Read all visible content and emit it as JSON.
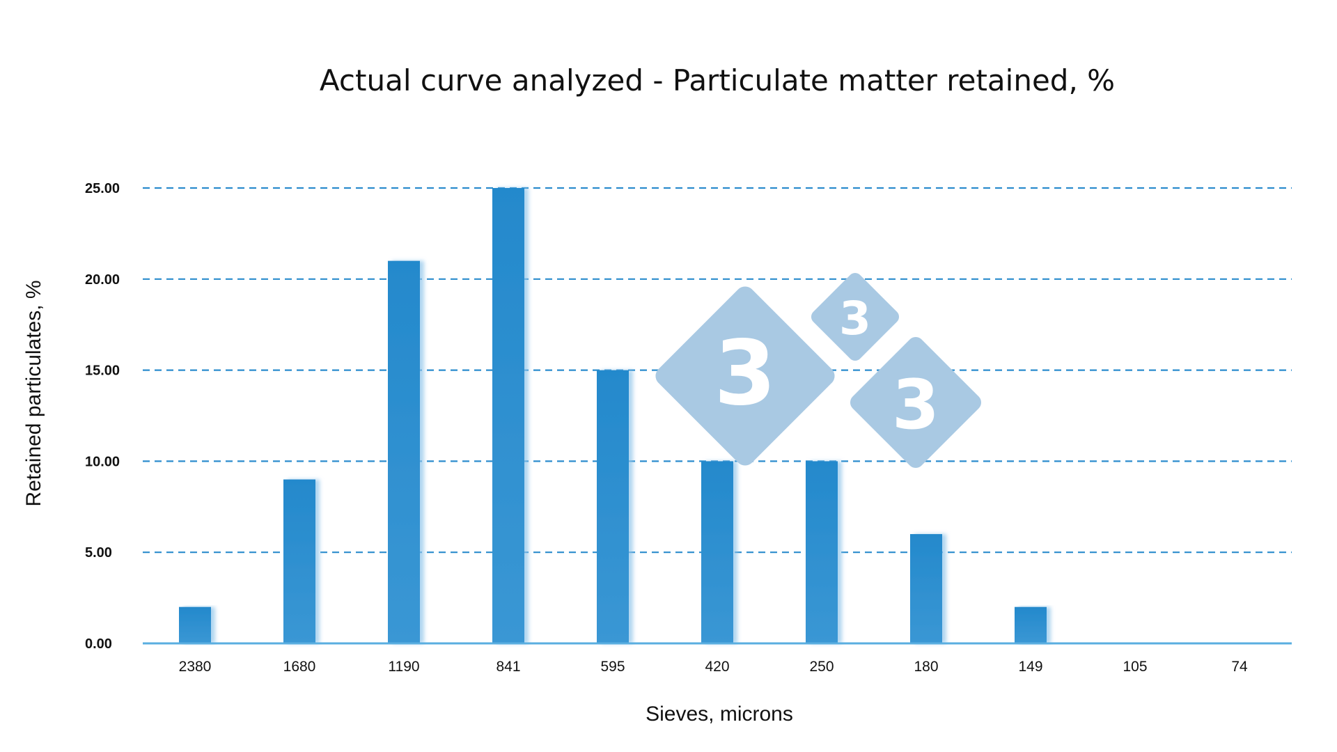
{
  "chart_data": {
    "type": "bar",
    "title": "Actual curve analyzed - Particulate matter retained, %",
    "xlabel": "Sieves, microns",
    "ylabel": "Retained particulates, %",
    "categories": [
      "2380",
      "1680",
      "1190",
      "841",
      "595",
      "420",
      "250",
      "180",
      "149",
      "105",
      "74"
    ],
    "values": [
      2,
      9,
      21,
      25,
      15,
      10,
      10,
      6,
      2,
      0,
      0
    ],
    "ylim": [
      0,
      25
    ],
    "y_ticks": [
      "0.00",
      "5.00",
      "10.00",
      "15.00",
      "20.00",
      "25.00"
    ],
    "grid": "horizontal-dashed",
    "legend": "none",
    "bar_color": "#2b8ccd",
    "grid_color": "#2b8ccd"
  },
  "watermark": {
    "digits": [
      "3",
      "3",
      "3"
    ],
    "color": "#a9c9e3"
  }
}
